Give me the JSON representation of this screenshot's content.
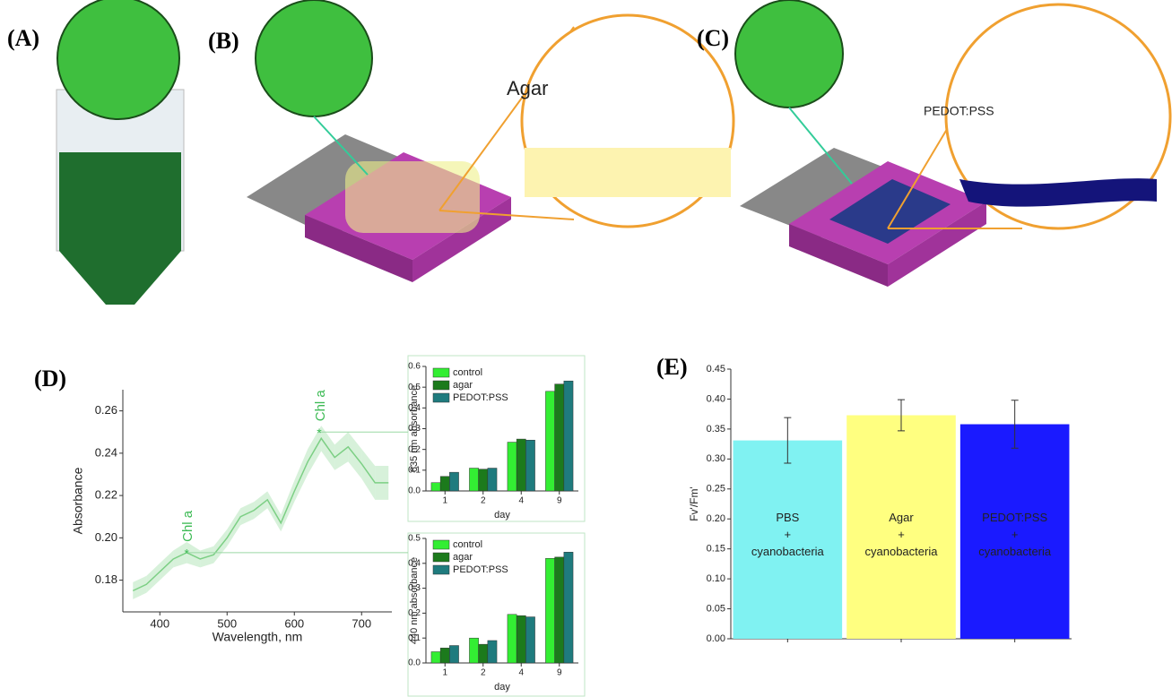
{
  "panel_labels": [
    "(A)",
    "(B)",
    "(C)",
    "(D)",
    "(E)"
  ],
  "illustrations": {
    "agar_label": "Agar",
    "pedot_label": "PEDOT:PSS"
  },
  "chart_data": [
    {
      "type": "line",
      "xlabel": "Wavelength, nm",
      "ylabel": "Absorbance",
      "x": [
        360,
        380,
        400,
        420,
        440,
        460,
        480,
        500,
        520,
        540,
        560,
        580,
        600,
        620,
        640,
        660,
        680,
        700,
        720,
        740
      ],
      "series": [
        {
          "color": "#7ccf84",
          "values": [
            0.175,
            0.178,
            0.184,
            0.19,
            0.193,
            0.19,
            0.192,
            0.2,
            0.21,
            0.213,
            0.218,
            0.207,
            0.222,
            0.236,
            0.247,
            0.238,
            0.243,
            0.235,
            0.226,
            0.226
          ],
          "error": [
            0.004,
            0.004,
            0.004,
            0.004,
            0.005,
            0.004,
            0.004,
            0.004,
            0.004,
            0.004,
            0.004,
            0.004,
            0.005,
            0.006,
            0.006,
            0.006,
            0.007,
            0.007,
            0.008,
            0.008
          ]
        }
      ],
      "annotations": [
        {
          "text": "Chl a",
          "x": 440,
          "y": 0.193
        },
        {
          "text": "Chl a",
          "x": 637,
          "y": 0.25
        }
      ],
      "xlim": [
        345,
        745
      ],
      "ylim": [
        0.165,
        0.27
      ],
      "xticks": [
        400,
        500,
        600,
        700
      ],
      "yticks": [
        0.18,
        {
          "value": 0.2,
          "label": "0.20"
        },
        0.22,
        0.24,
        0.26
      ]
    },
    {
      "type": "bar",
      "xlabel": "day",
      "ylabel": "635 nm absorbance",
      "categories": [
        "1",
        "2",
        "4",
        "9"
      ],
      "legend": "upper left",
      "series": [
        {
          "name": "control",
          "color": "#33ee33",
          "values": [
            0.04,
            0.11,
            0.235,
            0.48
          ]
        },
        {
          "name": "agar",
          "color": "#1c7a1c",
          "values": [
            0.07,
            0.105,
            0.25,
            0.515
          ]
        },
        {
          "name": "PEDOT:PSS",
          "color": "#1f7b7e",
          "values": [
            0.09,
            0.11,
            0.245,
            0.53
          ]
        }
      ],
      "ylim": [
        0,
        0.6
      ],
      "yticks": [
        {
          "value": 0,
          "label": "0.0"
        },
        0.1,
        0.2,
        0.3,
        0.4,
        0.5,
        0.6
      ]
    },
    {
      "type": "bar",
      "xlabel": "day",
      "ylabel": "440 nm absorbance",
      "categories": [
        "1",
        "2",
        "4",
        "9"
      ],
      "legend": "upper left",
      "series": [
        {
          "name": "control",
          "color": "#33ee33",
          "values": [
            0.045,
            0.1,
            0.195,
            0.42
          ]
        },
        {
          "name": "agar",
          "color": "#1c7a1c",
          "values": [
            0.06,
            0.075,
            0.19,
            0.425
          ]
        },
        {
          "name": "PEDOT:PSS",
          "color": "#1f7b7e",
          "values": [
            0.07,
            0.09,
            0.185,
            0.445
          ]
        }
      ],
      "ylim": [
        0,
        0.5
      ],
      "yticks": [
        {
          "value": 0,
          "label": "0.0"
        },
        0.1,
        0.2,
        0.3,
        0.4,
        0.5
      ]
    },
    {
      "type": "bar",
      "ylabel": "Fv'/Fm'",
      "categories": [
        "PBS + cyanobacteria",
        "Agar + cyanobacteria",
        "PEDOT:PSS + cyanobacteria"
      ],
      "series": [
        {
          "colors": [
            "#80f2f2",
            "#ffff80",
            "#1a1aff"
          ],
          "values": [
            0.331,
            0.373,
            0.358
          ],
          "error": [
            0.038,
            0.026,
            0.04
          ]
        }
      ],
      "ylim": [
        0,
        0.45
      ],
      "yticks": [
        {
          "value": 0,
          "label": "0.00"
        },
        0.05,
        {
          "value": 0.1,
          "label": "0.10"
        },
        0.15,
        {
          "value": 0.2,
          "label": "0.20"
        },
        0.25,
        {
          "value": 0.3,
          "label": "0.30"
        },
        0.35,
        {
          "value": 0.4,
          "label": "0.40"
        },
        0.45
      ]
    }
  ]
}
